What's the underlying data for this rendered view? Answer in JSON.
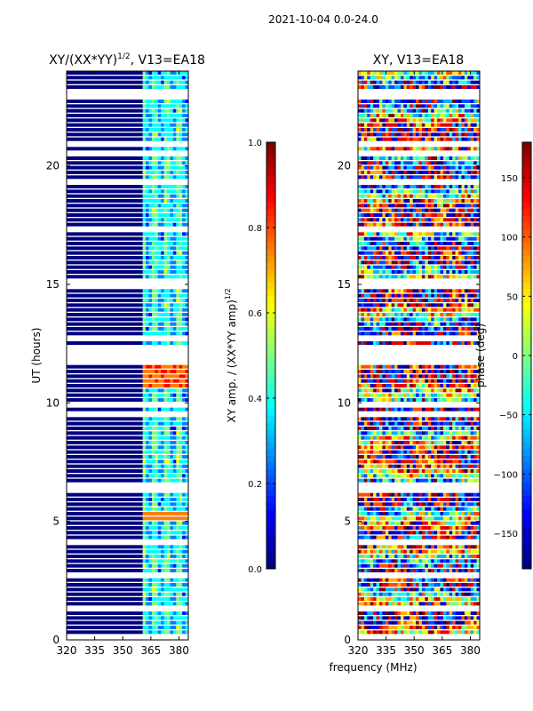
{
  "figure": {
    "suptitle": "2021-10-04 0.0-24.0",
    "shared_xlabel": "frequency (MHz)"
  },
  "chart_data": [
    {
      "type": "heatmap",
      "title_text": "XY/(XX*YY)",
      "title_exponent": "1/2",
      "title_suffix": ", V13=EA18",
      "xlabel": "",
      "ylabel": "UT (hours)",
      "xlim": [
        320,
        385
      ],
      "ylim": [
        0,
        24
      ],
      "xticks": [
        320,
        335,
        350,
        365,
        380
      ],
      "yticks": [
        0,
        5,
        10,
        15,
        20
      ],
      "colormap": "jet",
      "colorbar": {
        "label_text": "XY amp. / (XX*YY amp)",
        "label_exponent": "1/2",
        "range": [
          0.0,
          1.0
        ],
        "ticks": [
          "0.0",
          "0.2",
          "0.4",
          "0.6",
          "0.8",
          "1.0"
        ]
      },
      "notes": "Mostly near 0 below ~361 MHz; elevated values (0.3-0.6) in channels ~361-382 MHz; peak ~0.8 near 10.5-12 h and ~5 h"
    },
    {
      "type": "heatmap",
      "title": "XY, V13=EA18",
      "xlabel": "",
      "ylabel": "",
      "xlim": [
        320,
        385
      ],
      "ylim": [
        0,
        24
      ],
      "xticks": [
        320,
        335,
        350,
        365,
        380
      ],
      "yticks": [
        0,
        5,
        10,
        15,
        20
      ],
      "colormap": "jet",
      "colorbar": {
        "label": "phase (deg)",
        "range": [
          -180,
          180
        ],
        "ticks": [
          -150,
          -100,
          -50,
          0,
          50,
          100,
          150
        ]
      },
      "notes": "Phase varies widely across full band; horizontal blank rows where data flagged"
    }
  ],
  "colors": {
    "jet_dark_blue": "#00008f",
    "blank": "#ffffff"
  }
}
